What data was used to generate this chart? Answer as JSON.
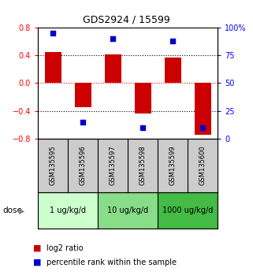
{
  "title": "GDS2924 / 15599",
  "samples": [
    "GSM135595",
    "GSM135596",
    "GSM135597",
    "GSM135598",
    "GSM135599",
    "GSM135600"
  ],
  "log2_ratio": [
    0.45,
    -0.35,
    0.42,
    -0.44,
    0.37,
    -0.75
  ],
  "percentile_rank": [
    95,
    15,
    90,
    10,
    88,
    10
  ],
  "bar_color": "#cc0000",
  "dot_color": "#0000cc",
  "ylim_left": [
    -0.8,
    0.8
  ],
  "ylim_right": [
    0,
    100
  ],
  "yticks_left": [
    -0.8,
    -0.4,
    0.0,
    0.4,
    0.8
  ],
  "yticks_right": [
    0,
    25,
    50,
    75,
    100
  ],
  "ytick_labels_right": [
    "0",
    "25",
    "50",
    "75",
    "100%"
  ],
  "hlines": [
    -0.4,
    0.0,
    0.4
  ],
  "hline_colors": [
    "black",
    "red",
    "black"
  ],
  "hline_styles": [
    "dotted",
    "dotted",
    "dotted"
  ],
  "dose_groups": [
    {
      "label": "1 ug/kg/d",
      "cols": [
        0,
        1
      ],
      "color": "#ccffcc"
    },
    {
      "label": "10 ug/kg/d",
      "cols": [
        2,
        3
      ],
      "color": "#88dd88"
    },
    {
      "label": "1000 ug/kg/d",
      "cols": [
        4,
        5
      ],
      "color": "#44bb44"
    }
  ],
  "dose_label": "dose",
  "legend_red": "log2 ratio",
  "legend_blue": "percentile rank within the sample",
  "bar_width": 0.55,
  "sample_area_bg": "#cccccc",
  "plot_bg": "#ffffff",
  "title_fontsize": 9,
  "tick_fontsize": 7,
  "sample_fontsize": 6,
  "dose_fontsize": 7,
  "legend_fontsize": 7
}
